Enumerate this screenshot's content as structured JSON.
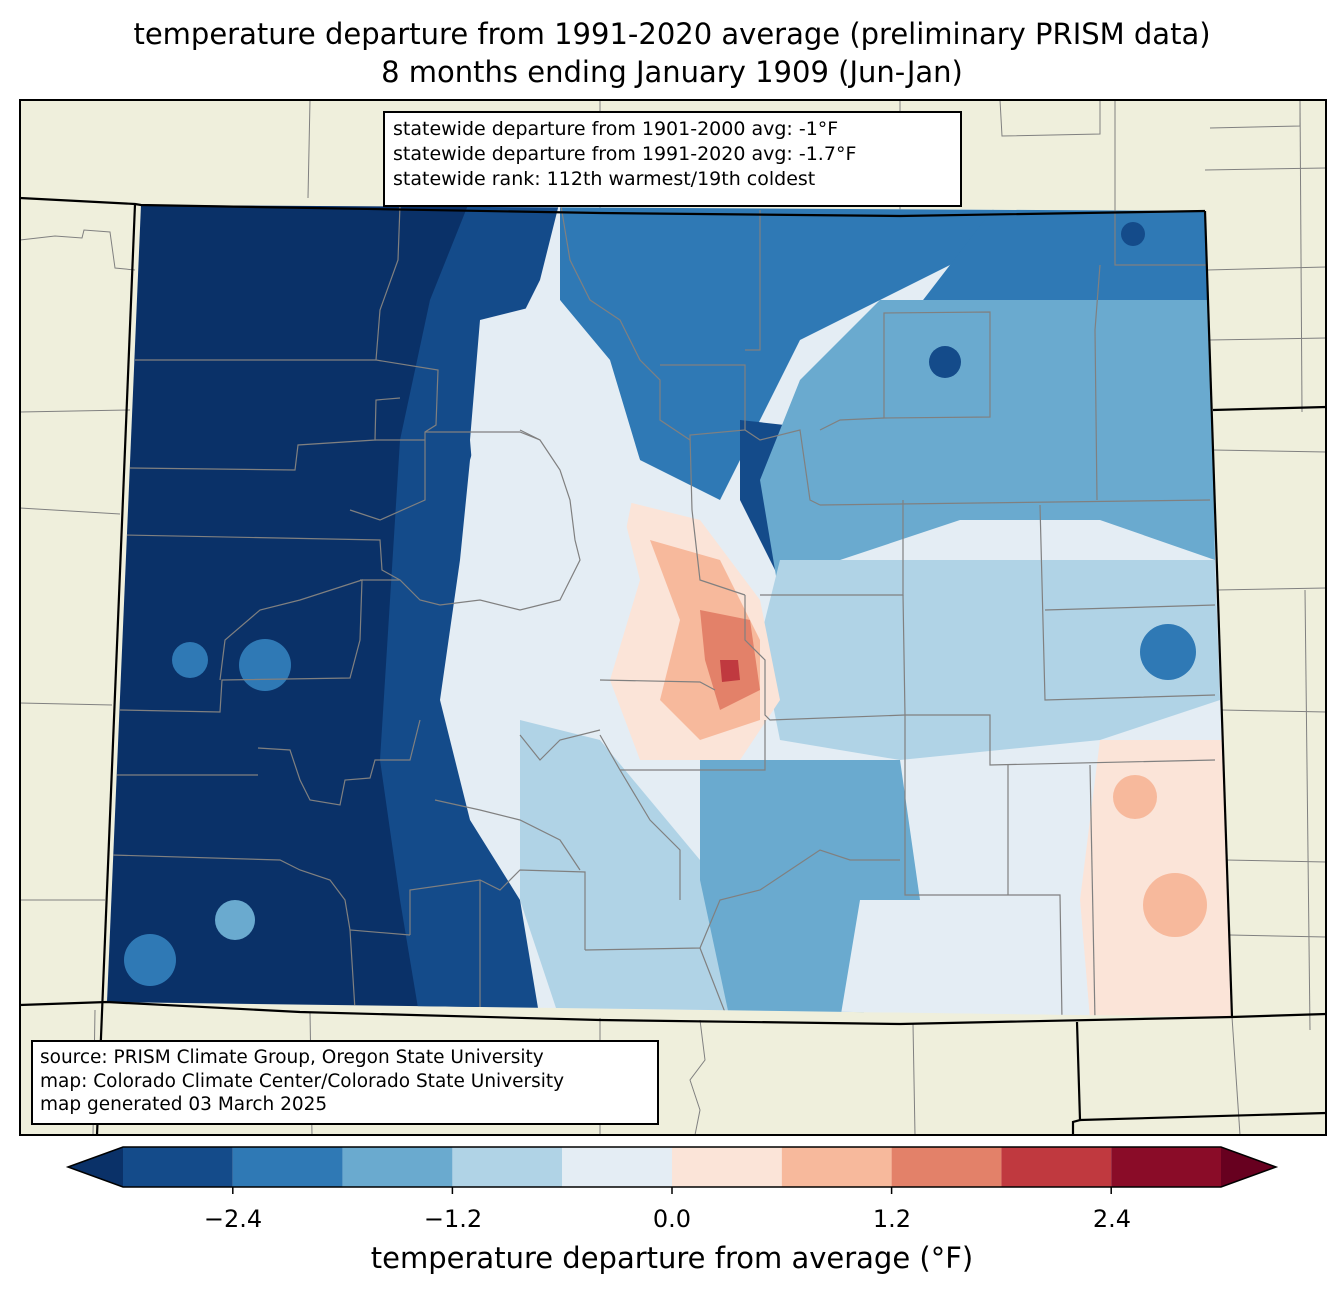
{
  "title": {
    "line1": "temperature departure from 1991-2020 average (preliminary PRISM data)",
    "line2": "8 months ending January 1909 (Jun-Jan)"
  },
  "stats": {
    "line1": "statewide departure from 1901-2000 avg: -1°F",
    "line2": "statewide departure from 1991-2020 avg: -1.7°F",
    "line3": "statewide rank: 112th warmest/19th coldest"
  },
  "credits": {
    "line1": "source: PRISM Climate Group, Oregon State University",
    "line2": "map: Colorado Climate Center/Colorado State University",
    "line3": "map generated 03 March 2025"
  },
  "colorbar": {
    "label": "temperature departure from average (°F)",
    "ticks": [
      "−2.4",
      "−1.2",
      "0.0",
      "1.2",
      "2.4"
    ],
    "bins": [
      {
        "min": -3.0,
        "max": -2.4,
        "color": "#144b8a"
      },
      {
        "min": -2.4,
        "max": -1.8,
        "color": "#2f79b5"
      },
      {
        "min": -1.8,
        "max": -1.2,
        "color": "#6aaacf"
      },
      {
        "min": -1.2,
        "max": -0.6,
        "color": "#b0d3e6"
      },
      {
        "min": -0.6,
        "max": 0.0,
        "color": "#e4edf4"
      },
      {
        "min": 0.0,
        "max": 0.6,
        "color": "#fbe4d8"
      },
      {
        "min": 0.6,
        "max": 1.2,
        "color": "#f7b99c"
      },
      {
        "min": 1.2,
        "max": 1.8,
        "color": "#e38169"
      },
      {
        "min": 1.8,
        "max": 2.4,
        "color": "#c0393f"
      },
      {
        "min": 2.4,
        "max": 3.0,
        "color": "#8a0c28"
      }
    ],
    "under_color": "#0a3168",
    "over_color": "#67001f"
  },
  "map_colors": {
    "land_background": "#efefdc",
    "county_lines": "#808080",
    "state_lines": "#000000"
  }
}
